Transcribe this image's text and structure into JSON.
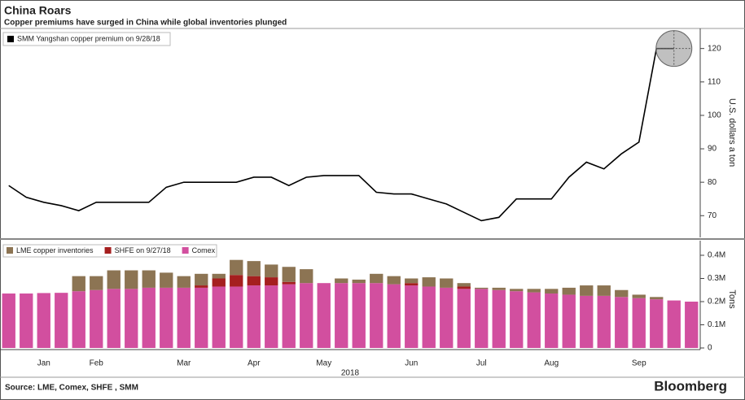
{
  "title": "China Roars",
  "subtitle": "Copper premiums have surged in China while global inventories plunged",
  "source": "Source: LME, Comex, SHFE , SMM",
  "brand": "Bloomberg",
  "chart_data": [
    {
      "type": "line",
      "ylabel": "U.S. dollars a ton",
      "ylim": [
        63.5,
        126
      ],
      "yticks": [
        70,
        80,
        90,
        100,
        110,
        120
      ],
      "series": [
        {
          "name": "SMM Yangshan copper premium on 9/28/18",
          "color": "#000000",
          "values": [
            79,
            75.5,
            74,
            73,
            71.5,
            74,
            74,
            74,
            74,
            78.5,
            80,
            80,
            80,
            80,
            81.5,
            81.5,
            79,
            81.5,
            82,
            82,
            82,
            77,
            76.5,
            76.5,
            75,
            73.5,
            71,
            68.5,
            69.5,
            75,
            75,
            75,
            81.5,
            86,
            84,
            88.5,
            92,
            120,
            120,
            null
          ]
        }
      ]
    },
    {
      "type": "bar",
      "stacked": true,
      "ylabel": "Tons",
      "xlabel": "2018",
      "ylim": [
        0,
        450000
      ],
      "yticks": [
        0,
        {
          "value": 100000,
          "label": "0.1M"
        },
        {
          "value": 200000,
          "label": "0.2M"
        },
        {
          "value": 300000,
          "label": "0.3M"
        },
        {
          "value": 400000,
          "label": "0.4M"
        }
      ],
      "categories": [
        null,
        null,
        "Jan",
        null,
        null,
        "Feb",
        null,
        null,
        null,
        null,
        "Mar",
        null,
        null,
        null,
        "Apr",
        null,
        null,
        null,
        "May",
        null,
        null,
        null,
        null,
        "Jun",
        null,
        null,
        null,
        "Jul",
        null,
        null,
        null,
        "Aug",
        null,
        null,
        null,
        null,
        "Sep",
        null,
        null,
        null
      ],
      "series": [
        {
          "name": "LME copper inventories",
          "color": "#8c7453",
          "values": [
            0,
            0,
            0,
            0,
            65000,
            60000,
            80000,
            80000,
            75000,
            65000,
            50000,
            50000,
            20000,
            65000,
            65000,
            55000,
            65000,
            60000,
            0,
            20000,
            15000,
            40000,
            35000,
            20000,
            40000,
            40000,
            15000,
            5000,
            10000,
            10000,
            15000,
            20000,
            30000,
            45000,
            45000,
            30000,
            15000,
            10000,
            0,
            0
          ]
        },
        {
          "name": "SHFE on 9/27/18",
          "color": "#a51f1f",
          "values": [
            0,
            0,
            0,
            0,
            0,
            0,
            0,
            0,
            0,
            0,
            0,
            10000,
            35000,
            50000,
            40000,
            35000,
            10000,
            0,
            0,
            0,
            0,
            0,
            0,
            10000,
            0,
            0,
            10000,
            0,
            0,
            0,
            0,
            0,
            0,
            0,
            0,
            0,
            0,
            0,
            0,
            0
          ]
        },
        {
          "name": "Comex",
          "color": "#d24f9f",
          "values": [
            235000,
            235000,
            237000,
            238000,
            245000,
            250000,
            255000,
            255000,
            260000,
            260000,
            260000,
            260000,
            265000,
            265000,
            270000,
            270000,
            275000,
            280000,
            280000,
            280000,
            280000,
            280000,
            275000,
            270000,
            265000,
            260000,
            255000,
            255000,
            250000,
            245000,
            240000,
            235000,
            230000,
            225000,
            225000,
            220000,
            215000,
            210000,
            205000,
            200000
          ]
        }
      ]
    }
  ]
}
